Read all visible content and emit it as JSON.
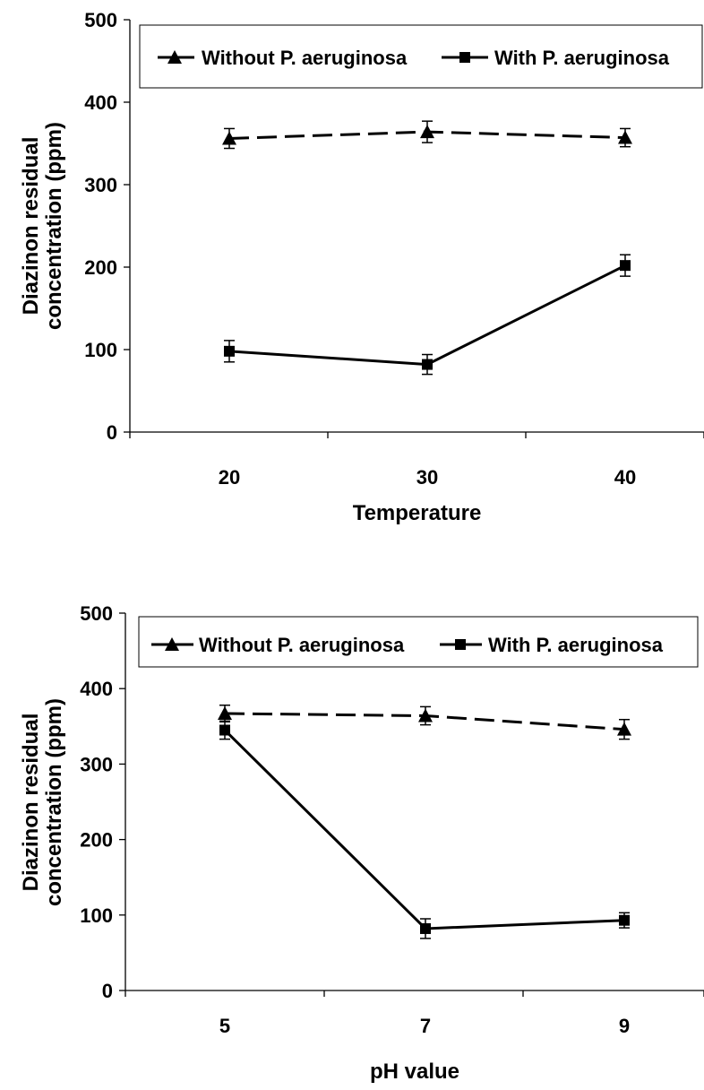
{
  "chart_data": [
    {
      "type": "line",
      "xlabel": "Temperature",
      "ylabel": [
        "Diazinon residual",
        "concentration (ppm)"
      ],
      "categories": [
        "20",
        "30",
        "40"
      ],
      "ylim": [
        0,
        500
      ],
      "yticks": [
        0,
        100,
        200,
        300,
        400,
        500
      ],
      "grid": false,
      "legend_position": "top",
      "series": [
        {
          "name": "Without P. aeruginosa",
          "values": [
            356,
            364,
            357
          ],
          "errors": [
            12,
            13,
            11
          ],
          "marker": "triangle",
          "line_style": "dashed",
          "legend_label": "Without P. aeruginosa"
        },
        {
          "name": "With P. aeruginosa",
          "values": [
            98,
            82,
            202
          ],
          "errors": [
            13,
            12,
            13
          ],
          "marker": "square",
          "line_style": "solid",
          "legend_label": "With P. aeruginosa"
        }
      ]
    },
    {
      "type": "line",
      "xlabel": "pH value",
      "ylabel": [
        "Diazinon residual",
        "concentration (ppm)"
      ],
      "categories": [
        "5",
        "7",
        "9"
      ],
      "ylim": [
        0,
        500
      ],
      "yticks": [
        0,
        100,
        200,
        300,
        400,
        500
      ],
      "grid": false,
      "legend_position": "top",
      "series": [
        {
          "name": "Without P. aeruginosa",
          "values": [
            367,
            364,
            346
          ],
          "errors": [
            11,
            12,
            13
          ],
          "marker": "triangle",
          "line_style": "dashed",
          "legend_label": "Without P. aeruginosa"
        },
        {
          "name": "With P. aeruginosa",
          "values": [
            345,
            82,
            93
          ],
          "errors": [
            12,
            13,
            10
          ],
          "marker": "square",
          "line_style": "solid",
          "legend_label": "With P. aeruginosa"
        }
      ]
    }
  ]
}
